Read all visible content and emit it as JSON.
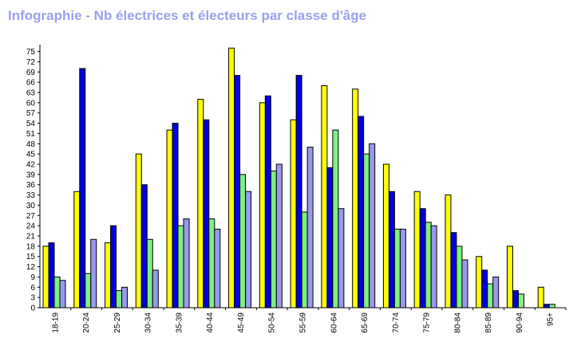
{
  "title": "Infographie - Nb électrices et électeurs par classe d'âge",
  "chart_data": {
    "type": "bar",
    "title": "Infographie - Nb électrices et électeurs par classe d'âge",
    "xlabel": "",
    "ylabel": "",
    "ylim": [
      0,
      77
    ],
    "y_ticks": [
      0,
      3,
      6,
      9,
      12,
      15,
      18,
      21,
      24,
      27,
      30,
      33,
      36,
      39,
      42,
      45,
      48,
      51,
      54,
      57,
      60,
      63,
      66,
      69,
      72,
      75
    ],
    "grid": false,
    "categories": [
      "18-19",
      "20-24",
      "25-29",
      "30-34",
      "35-39",
      "40-44",
      "45-49",
      "50-54",
      "55-59",
      "60-64",
      "65-69",
      "70-74",
      "75-79",
      "80-84",
      "85-89",
      "90-94",
      "95+"
    ],
    "series": [
      {
        "color": "#ffff00",
        "values": [
          18,
          34,
          19,
          45,
          52,
          61,
          76,
          60,
          55,
          65,
          64,
          42,
          34,
          33,
          15,
          18,
          6
        ]
      },
      {
        "color": "#0000dd",
        "values": [
          19,
          70,
          24,
          36,
          54,
          55,
          68,
          62,
          68,
          41,
          56,
          34,
          29,
          22,
          11,
          5,
          1
        ]
      },
      {
        "color": "#80f080",
        "values": [
          9,
          10,
          5,
          20,
          24,
          26,
          39,
          40,
          28,
          52,
          45,
          23,
          25,
          18,
          7,
          4,
          1
        ]
      },
      {
        "color": "#9999ee",
        "values": [
          8,
          20,
          6,
          11,
          26,
          23,
          34,
          42,
          47,
          29,
          48,
          23,
          24,
          14,
          9,
          0,
          0
        ]
      }
    ]
  }
}
